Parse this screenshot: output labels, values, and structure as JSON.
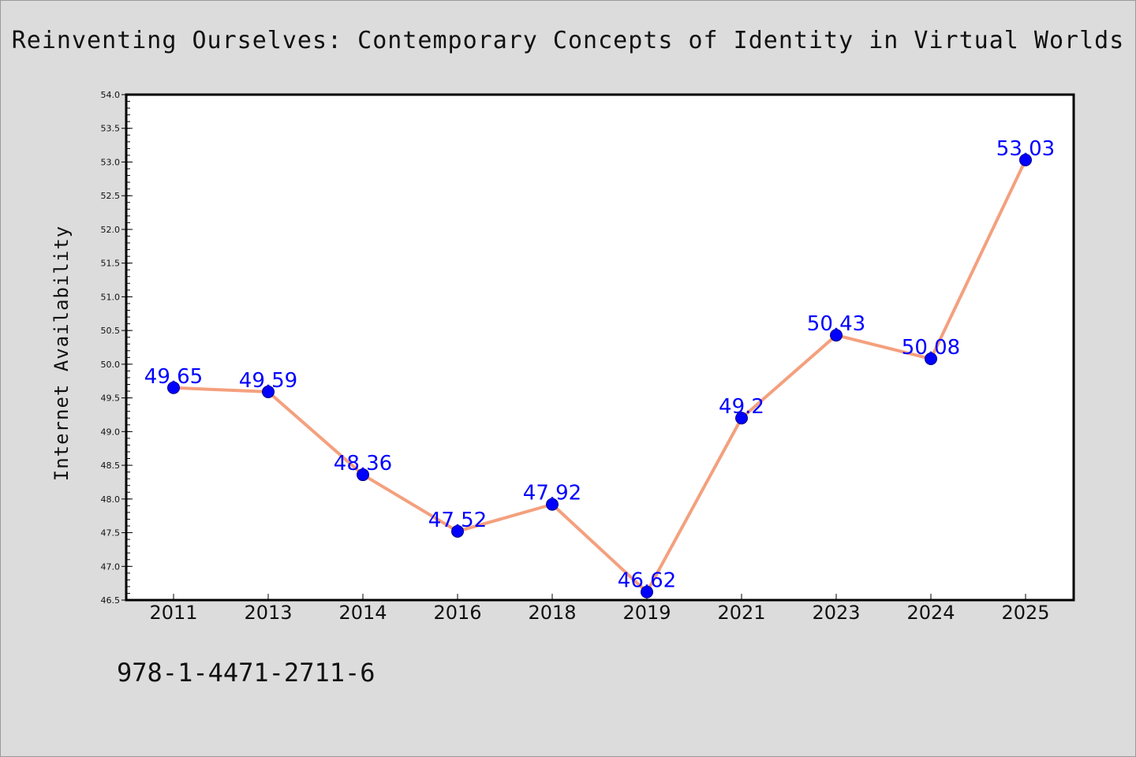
{
  "page": {
    "title": "Reinventing Ourselves: Contemporary Concepts of Identity in Virtual Worlds",
    "isbn": "978-1-4471-2711-6"
  },
  "chart_data": {
    "type": "line",
    "title": "Reinventing Ourselves: Contemporary Concepts of Identity in Virtual Worlds",
    "xlabel": "",
    "ylabel": "Internet Availability",
    "categories": [
      "2011",
      "2013",
      "2014",
      "2016",
      "2018",
      "2019",
      "2021",
      "2023",
      "2024",
      "2025"
    ],
    "series": [
      {
        "values": [
          49.65,
          49.59,
          48.36,
          47.52,
          47.92,
          46.62,
          49.2,
          50.43,
          50.08,
          53.03
        ],
        "labels": [
          "49.65",
          "49.59",
          "48.36",
          "47.52",
          "47.92",
          "46.62",
          "49.2",
          "50.43",
          "50.08",
          "53.03"
        ]
      }
    ],
    "ylim": [
      46.5,
      54.0
    ],
    "yticks": [
      "46.5",
      "47.0",
      "47.5",
      "48.0",
      "48.5",
      "49.0",
      "49.5",
      "50.0",
      "50.5",
      "51.0",
      "51.5",
      "52.0",
      "52.5",
      "53.0",
      "53.5",
      "54.0"
    ],
    "grid": false,
    "legend": "none",
    "colors": {
      "line": "#f4a07e",
      "marker": "#0000ff",
      "marker_edge": "#000080",
      "data_label": "#0000ff",
      "plot_background": "#ffffff",
      "page_background": "#dcdcdc"
    }
  }
}
